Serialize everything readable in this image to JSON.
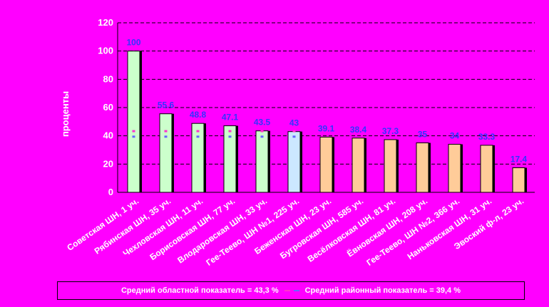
{
  "chart_data": {
    "type": "bar",
    "title": "",
    "xlabel": "",
    "ylabel": "проценты",
    "ylim": [
      0,
      120
    ],
    "yticks": [
      0,
      20,
      40,
      60,
      80,
      100,
      120
    ],
    "grid": true,
    "legend_placement": "bottom",
    "categories": [
      "Советская ШН, 1 уч.",
      "Рябинская ШН, 35 уч.",
      "Чехловская ШН, 11 уч.",
      "Борисовская ШН, 77 уч.",
      "Влодаровская ШН, 33 уч.",
      "Гее-Теево, ШН №1, 225 уч.",
      "Беженская ШН, 23 уч.",
      "Бугровская ШН, 585 уч.",
      "Весёлковская ШН, 81 уч.",
      "Ёвновская ШН, 208 уч.",
      "Гее-Теево, ШН №2, 366 уч.",
      "Наньковская ШН, 31 уч.",
      "Эвоский ф-л, 23 уч."
    ],
    "values": [
      100,
      55.6,
      48.8,
      47.1,
      43.5,
      43,
      39.1,
      38.4,
      37.3,
      35,
      34,
      33.3,
      17.4
    ],
    "data_labels": [
      "100",
      "55.6",
      "48.8",
      "47.1",
      "43.5",
      "43",
      "39.1",
      "38.4",
      "37.3",
      "35",
      "34",
      "33.3",
      "17.4"
    ],
    "bar_colors": [
      "#ccffcc",
      "#ccffcc",
      "#ccffcc",
      "#ccffcc",
      "#ccffcc",
      "#cce8ff",
      "#ffcc99",
      "#ffcc99",
      "#ffcc99",
      "#ffcc99",
      "#ffcc99",
      "#ffcc99",
      "#ffcc99"
    ],
    "reference_lines": [
      {
        "name": "Средний областной показатель = 43,3 %",
        "value": 43.3,
        "color": "#ff33cc"
      },
      {
        "name": "Средний районный показатель = 39,4 %",
        "value": 39.4,
        "color": "#6666ff"
      }
    ]
  },
  "legend": {
    "regional_label": "Средний областной показатель = 43,3 %",
    "district_label": "Средний районный показатель = 39,4 %"
  },
  "colors": {
    "background": "#ff00ff",
    "grid": "#000000",
    "regional_mark": "#ff33cc",
    "district_mark": "#6666ff"
  }
}
